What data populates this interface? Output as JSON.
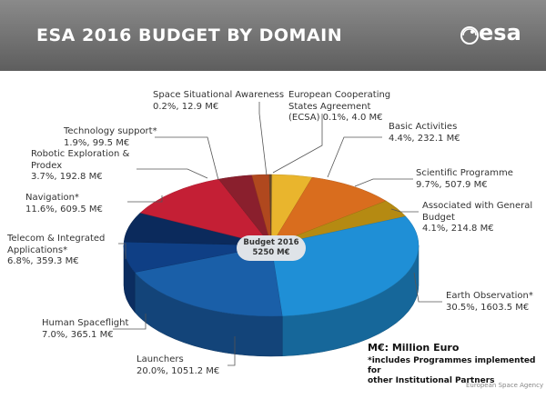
{
  "header": {
    "title": "ESA 2016 BUDGET BY DOMAIN",
    "logo_text": "esa"
  },
  "chart_data": {
    "type": "pie",
    "title": "ESA 2016 BUDGET BY DOMAIN",
    "center_label": {
      "line1": "Budget 2016",
      "line2": "5250 M€"
    },
    "slices": [
      {
        "name": "European Cooperating States Agreement (ECSA)",
        "percent": 0.1,
        "value": 4.0,
        "label_lines": [
          "European Cooperating",
          "States Agreement",
          "(ECSA) 0.1%, 4.0 M€"
        ],
        "color": "#9a7a3a"
      },
      {
        "name": "Basic Activities",
        "percent": 4.4,
        "value": 232.1,
        "label_lines": [
          "Basic Activities",
          "4.4%, 232.1 M€"
        ],
        "color": "#e9b52d"
      },
      {
        "name": "Scientific Programme",
        "percent": 9.7,
        "value": 507.9,
        "label_lines": [
          "Scientific Programme",
          "9.7%, 507.9 M€"
        ],
        "color": "#d96d1e"
      },
      {
        "name": "Associated with General Budget",
        "percent": 4.1,
        "value": 214.8,
        "label_lines": [
          "Associated with General",
          "Budget",
          "4.1%, 214.8 M€"
        ],
        "color": "#b58a12"
      },
      {
        "name": "Earth Observation*",
        "percent": 30.5,
        "value": 1603.5,
        "label_lines": [
          "Earth Observation*",
          "30.5%, 1603.5 M€"
        ],
        "color": "#1f8fd6"
      },
      {
        "name": "Launchers",
        "percent": 20.0,
        "value": 1051.2,
        "label_lines": [
          "Launchers",
          "20.0%, 1051.2 M€"
        ],
        "color": "#1a5fa8"
      },
      {
        "name": "Human Spaceflight",
        "percent": 7.0,
        "value": 365.1,
        "label_lines": [
          "Human Spaceflight",
          "7.0%, 365.1 M€"
        ],
        "color": "#0f3f85"
      },
      {
        "name": "Telecom & Integrated Applications*",
        "percent": 6.8,
        "value": 359.3,
        "label_lines": [
          "Telecom & Integrated",
          "Applications*",
          "6.8%, 359.3 M€"
        ],
        "color": "#0b2a5c"
      },
      {
        "name": "Navigation*",
        "percent": 11.6,
        "value": 609.5,
        "label_lines": [
          "Navigation*",
          "11.6%, 609.5 M€"
        ],
        "color": "#c41f35"
      },
      {
        "name": "Robotic Exploration & Prodex",
        "percent": 3.7,
        "value": 192.8,
        "label_lines": [
          "Robotic Exploration &",
          "Prodex",
          "3.7%, 192.8 M€"
        ],
        "color": "#8a1f2d"
      },
      {
        "name": "Technology support*",
        "percent": 1.9,
        "value": 99.5,
        "label_lines": [
          "Technology support*",
          "1.9%, 99.5 M€"
        ],
        "color": "#b0481e"
      },
      {
        "name": "Space Situational Awareness",
        "percent": 0.2,
        "value": 12.9,
        "label_lines": [
          "Space Situational Awareness",
          "0.2%, 12.9 M€"
        ],
        "color": "#6b4a2a"
      }
    ]
  },
  "notes": {
    "unit": "M€: Million Euro",
    "footnote_line1": "*includes Programmes implemented for",
    "footnote_line2": "other Institutional Partners",
    "agency": "European Space Agency"
  }
}
